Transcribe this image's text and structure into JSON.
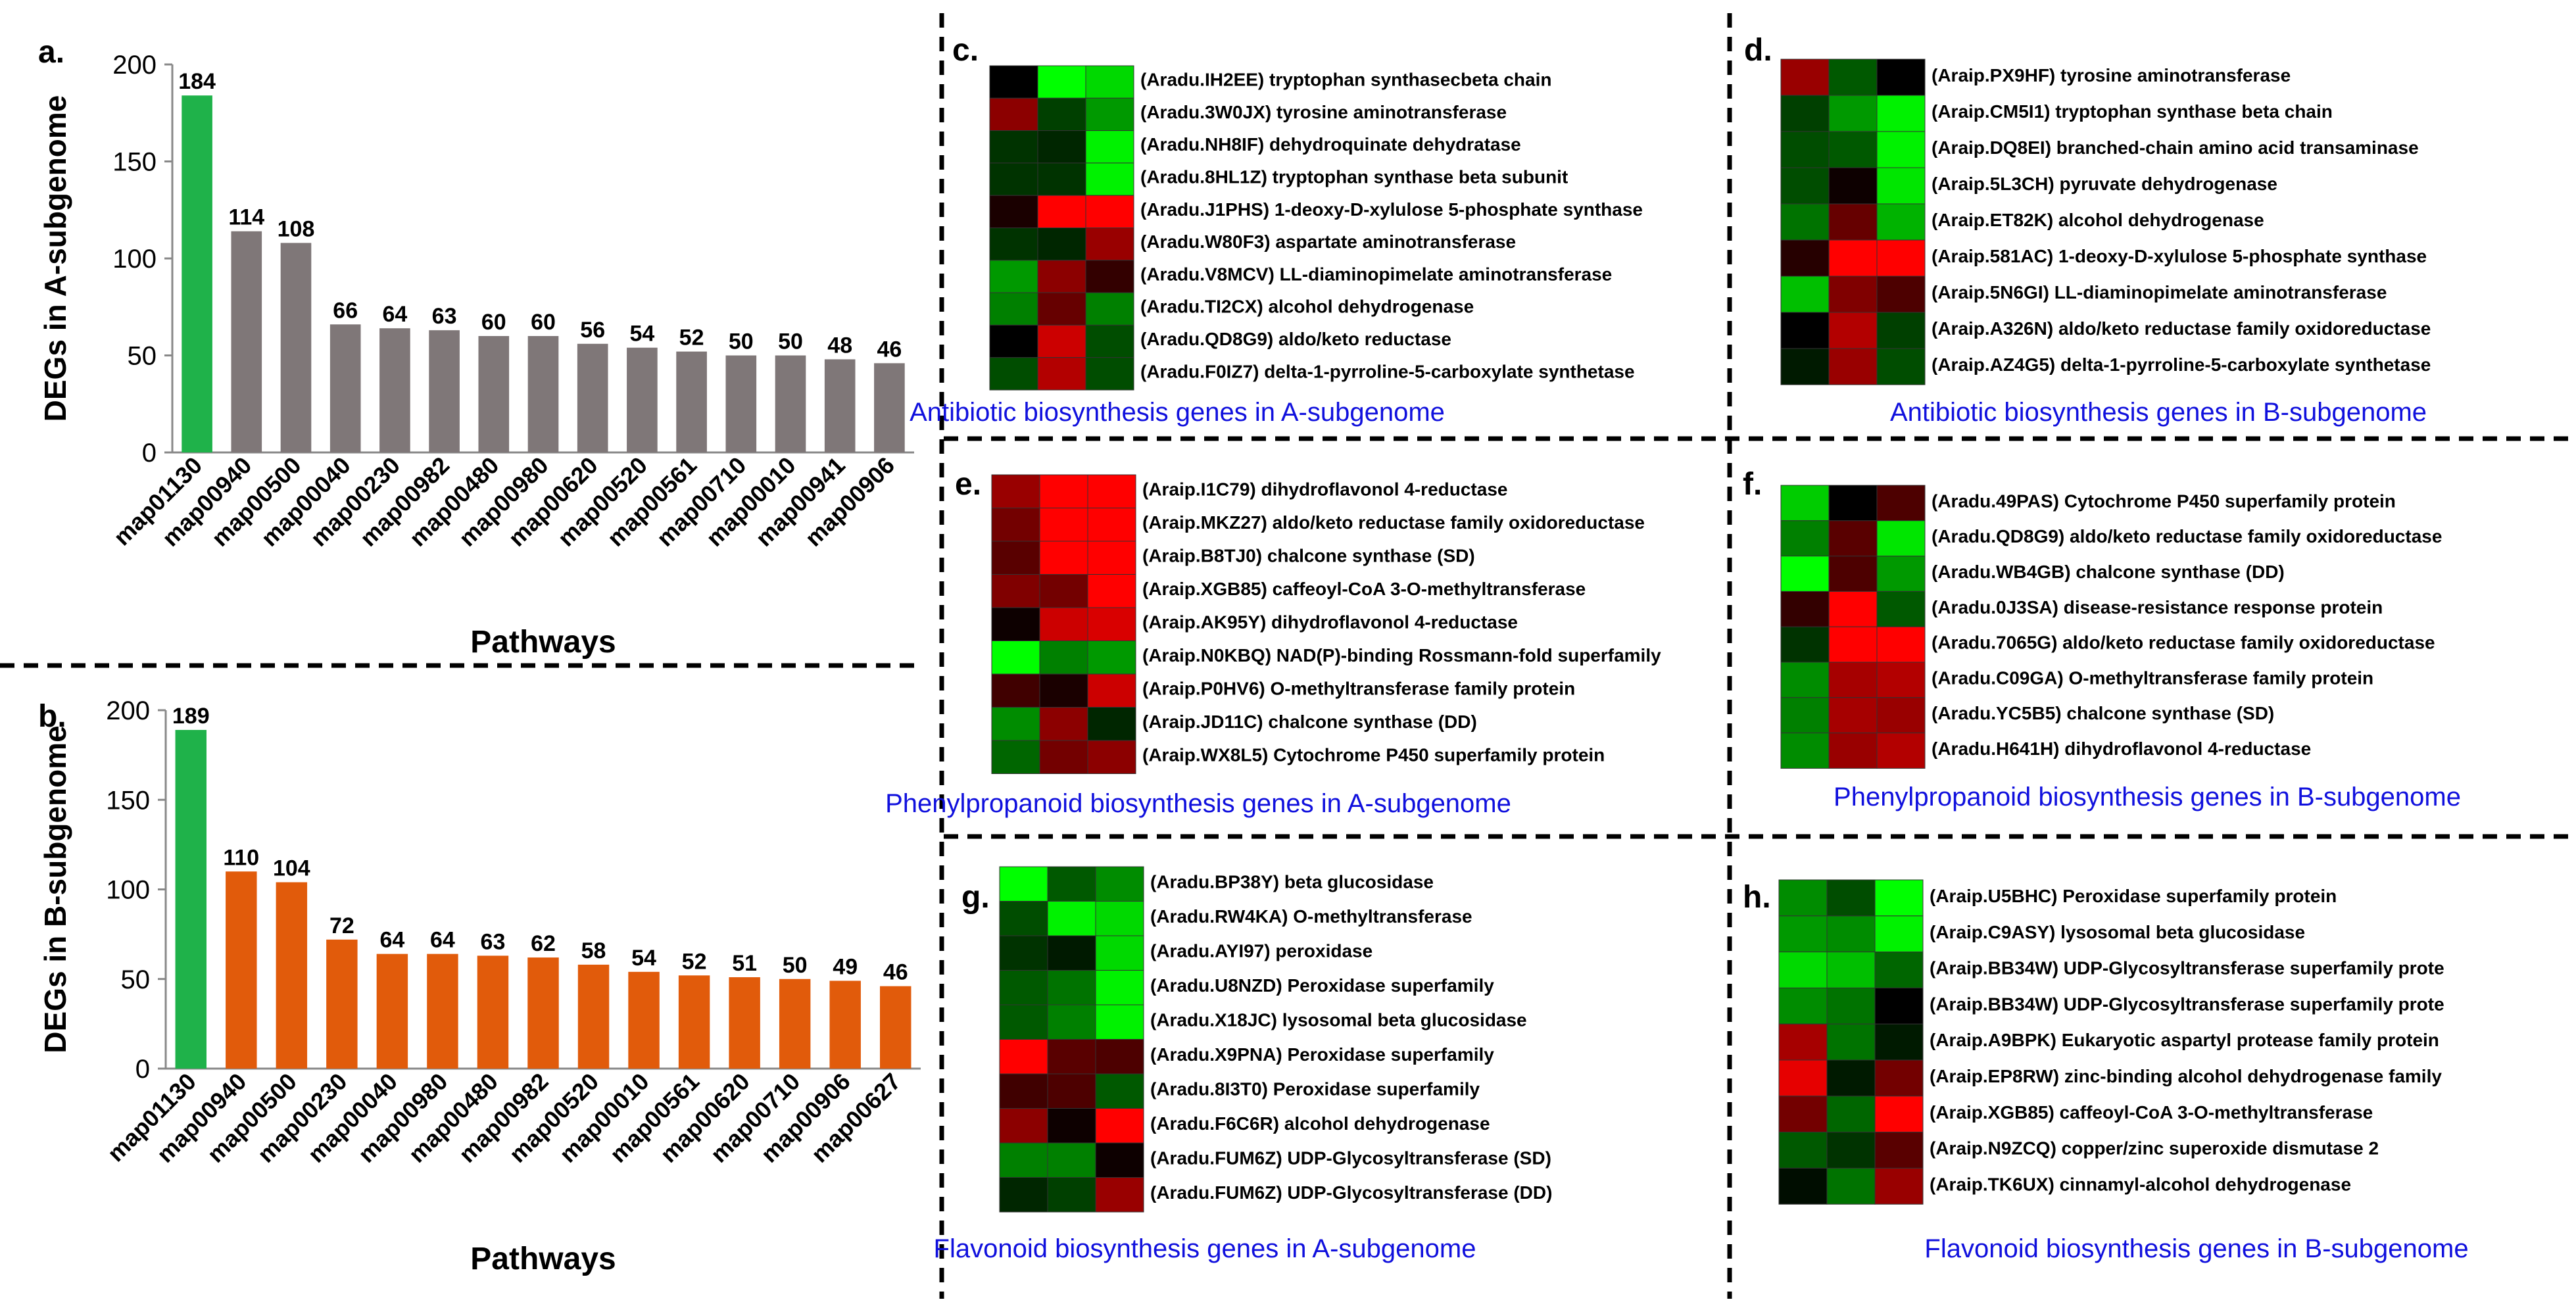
{
  "colors": {
    "green_bar": "#1fb24a",
    "gray_bar": "#7f7778",
    "orange_bar": "#e15b0b",
    "heat_up": "#ff0000",
    "heat_mid": "#000000",
    "heat_down": "#00ff00",
    "caption": "#1010dd"
  },
  "chart_data": [
    {
      "type": "bar",
      "panel_label": "a.",
      "ylabel": "DEGs in A-subgenome",
      "xlabel": "Pathways",
      "ylim": [
        0,
        200
      ],
      "yticks": [
        "0",
        "50",
        "100",
        "150",
        "200"
      ],
      "grid": false,
      "categories": [
        "map01130",
        "map00940",
        "map00500",
        "map00040",
        "map00230",
        "map00982",
        "map00480",
        "map00980",
        "map00620",
        "map00520",
        "map00561",
        "map00710",
        "map00010",
        "map00941",
        "map00906"
      ],
      "values": [
        184,
        114,
        108,
        66,
        64,
        63,
        60,
        60,
        56,
        54,
        52,
        50,
        50,
        48,
        46
      ],
      "bar_colors": [
        "green_bar",
        "gray_bar",
        "gray_bar",
        "gray_bar",
        "gray_bar",
        "gray_bar",
        "gray_bar",
        "gray_bar",
        "gray_bar",
        "gray_bar",
        "gray_bar",
        "gray_bar",
        "gray_bar",
        "gray_bar",
        "gray_bar"
      ]
    },
    {
      "type": "bar",
      "panel_label": "b.",
      "ylabel": "DEGs in B-subgenome",
      "xlabel": "Pathways",
      "ylim": [
        0,
        200
      ],
      "yticks": [
        "0",
        "50",
        "100",
        "150",
        "200"
      ],
      "grid": false,
      "categories": [
        "map01130",
        "map00940",
        "map00500",
        "map00230",
        "map00040",
        "map00980",
        "map00480",
        "map00982",
        "map00520",
        "map00010",
        "map00561",
        "map00620",
        "map00710",
        "map00906",
        "map00627"
      ],
      "values": [
        189,
        110,
        104,
        72,
        64,
        64,
        63,
        62,
        58,
        54,
        52,
        51,
        50,
        49,
        46
      ],
      "bar_colors": [
        "green_bar",
        "orange_bar",
        "orange_bar",
        "orange_bar",
        "orange_bar",
        "orange_bar",
        "orange_bar",
        "orange_bar",
        "orange_bar",
        "orange_bar",
        "orange_bar",
        "orange_bar",
        "orange_bar",
        "orange_bar",
        "orange_bar"
      ]
    },
    {
      "type": "heatmap",
      "panel_label": "c.",
      "title": "Antibiotic biosynthesis genes in A-subgenome",
      "rows": [
        "(Aradu.IH2EE) tryptophan synthasecbeta chain",
        "(Aradu.3W0JX) tyrosine aminotransferase",
        "(Aradu.NH8IF) dehydroquinate dehydratase",
        "(Aradu.8HL1Z) tryptophan synthase beta subunit",
        "(Aradu.J1PHS) 1-deoxy-D-xylulose 5-phosphate synthase",
        "(Aradu.W80F3) aspartate aminotransferase",
        "(Aradu.V8MCV) LL-diaminopimelate aminotransferase",
        "(Aradu.TI2CX) alcohol dehydrogenase",
        "(Aradu.QD8G9) aldo/keto reductase",
        "(Aradu.F0IZ7) delta-1-pyrroline-5-carboxylate synthetase"
      ],
      "values": [
        [
          0,
          -1,
          -0.85
        ],
        [
          0.55,
          -0.25,
          -0.6
        ],
        [
          -0.2,
          -0.15,
          -0.95
        ],
        [
          -0.2,
          -0.2,
          -0.95
        ],
        [
          0.1,
          1,
          1
        ],
        [
          -0.2,
          -0.15,
          0.6
        ],
        [
          -0.6,
          0.55,
          0.2
        ],
        [
          -0.5,
          0.4,
          -0.5
        ],
        [
          0,
          0.8,
          -0.3
        ],
        [
          -0.3,
          0.7,
          -0.3
        ]
      ]
    },
    {
      "type": "heatmap",
      "panel_label": "d.",
      "title": "Antibiotic biosynthesis genes in B-subgenome",
      "rows": [
        "(Araip.PX9HF) tyrosine aminotransferase",
        "(Araip.CM5I1) tryptophan synthase beta chain",
        "(Araip.DQ8EI) branched-chain amino acid transaminase",
        "(Araip.5L3CH) pyruvate dehydrogenase",
        "(Araip.ET82K) alcohol dehydrogenase",
        "(Araip.581AC) 1-deoxy-D-xylulose 5-phosphate synthase",
        "(Araip.5N6GI) LL-diaminopimelate aminotransferase",
        "(Araip.A326N) aldo/keto reductase family oxidoreductase",
        "(Araip.AZ4G5) delta-1-pyrroline-5-carboxylate synthetase"
      ],
      "values": [
        [
          0.6,
          -0.35,
          0
        ],
        [
          -0.25,
          -0.6,
          -0.95
        ],
        [
          -0.3,
          -0.35,
          -0.95
        ],
        [
          -0.3,
          0.05,
          -0.9
        ],
        [
          -0.45,
          0.4,
          -0.7
        ],
        [
          0.15,
          1,
          1
        ],
        [
          -0.75,
          0.5,
          0.3
        ],
        [
          0,
          0.7,
          -0.25
        ],
        [
          -0.1,
          0.6,
          -0.3
        ]
      ]
    },
    {
      "type": "heatmap",
      "panel_label": "e.",
      "title": "Phenylpropanoid biosynthesis genes in A-subgenome",
      "rows": [
        "(Araip.I1C79) dihydroflavonol 4-reductase",
        "(Araip.MKZ27) aldo/keto reductase family oxidoreductase",
        "(Araip.B8TJ0) chalcone synthase (SD)",
        "(Araip.XGB85) caffeoyl-CoA 3-O-methyltransferase",
        "(Araip.AK95Y) dihydroflavonol 4-reductase",
        "(Araip.N0KBQ) NAD(P)-binding Rossmann-fold superfamily",
        "(Araip.P0HV6) O-methyltransferase family protein",
        "(Araip.JD11C) chalcone synthase (DD)",
        "(Araip.WX8L5) Cytochrome P450 superfamily protein"
      ],
      "values": [
        [
          0.6,
          1,
          1
        ],
        [
          0.45,
          1,
          1
        ],
        [
          0.35,
          1,
          1
        ],
        [
          0.5,
          0.45,
          1
        ],
        [
          0.05,
          0.8,
          0.85
        ],
        [
          -1,
          -0.5,
          -0.6
        ],
        [
          0.25,
          0.1,
          0.8
        ],
        [
          -0.55,
          0.55,
          -0.15
        ],
        [
          -0.4,
          0.45,
          0.55
        ]
      ]
    },
    {
      "type": "heatmap",
      "panel_label": "f.",
      "title": "Phenylpropanoid biosynthesis genes in B-subgenome",
      "rows": [
        "(Aradu.49PAS) Cytochrome P450 superfamily protein",
        "(Aradu.QD8G9) aldo/keto reductase family oxidoreductase",
        "(Aradu.WB4GB) chalcone synthase (DD)",
        "(Aradu.0J3SA) disease-resistance response protein",
        "(Aradu.7065G) aldo/keto reductase family oxidoreductase",
        "(Aradu.C09GA) O-methyltransferase family protein",
        "(Aradu.YC5B5) chalcone synthase (SD)",
        "(Aradu.H641H) dihydroflavonol 4-reductase"
      ],
      "values": [
        [
          -0.8,
          0,
          0.3
        ],
        [
          -0.5,
          0.35,
          -0.9
        ],
        [
          -1,
          0.3,
          -0.6
        ],
        [
          0.2,
          1,
          -0.35
        ],
        [
          -0.2,
          1,
          1
        ],
        [
          -0.55,
          0.65,
          0.7
        ],
        [
          -0.5,
          0.65,
          0.6
        ],
        [
          -0.55,
          0.6,
          0.7
        ]
      ]
    },
    {
      "type": "heatmap",
      "panel_label": "g.",
      "title": "Flavonoid biosynthesis genes in A-subgenome",
      "rows": [
        "(Aradu.BP38Y) beta glucosidase",
        "(Aradu.RW4KA) O-methyltransferase",
        "(Aradu.AYI97) peroxidase",
        "(Aradu.U8NZD) Peroxidase superfamily",
        "(Aradu.X18JC) lysosomal beta glucosidase",
        "(Aradu.X9PNA) Peroxidase superfamily",
        "(Aradu.8I3T0) Peroxidase superfamily",
        "(Aradu.F6C6R) alcohol dehydrogenase",
        "(Aradu.FUM6Z) UDP-Glycosyltransferase (SD)",
        "(Aradu.FUM6Z) UDP-Glycosyltransferase (DD)"
      ],
      "values": [
        [
          -1,
          -0.35,
          -0.55
        ],
        [
          -0.3,
          -0.95,
          -0.85
        ],
        [
          -0.2,
          -0.1,
          -0.85
        ],
        [
          -0.35,
          -0.45,
          -0.95
        ],
        [
          -0.35,
          -0.5,
          -0.95
        ],
        [
          1,
          0.35,
          0.3
        ],
        [
          0.25,
          0.3,
          -0.35
        ],
        [
          0.55,
          0.05,
          1
        ],
        [
          -0.5,
          -0.5,
          0.05
        ],
        [
          -0.15,
          -0.25,
          0.6
        ]
      ]
    },
    {
      "type": "heatmap",
      "panel_label": "h.",
      "title": "Flavonoid biosynthesis genes in B-subgenome",
      "rows": [
        "(Araip.U5BHC) Peroxidase superfamily protein",
        "(Araip.C9ASY) lysosomal beta glucosidase",
        "(Araip.BB34W) UDP-Glycosyltransferase superfamily prote",
        "(Araip.BB34W) UDP-Glycosyltransferase superfamily prote",
        "(Araip.A9BPK) Eukaryotic aspartyl protease family protein",
        "(Araip.EP8RW) zinc-binding alcohol dehydrogenase family",
        "(Araip.XGB85) caffeoyl-CoA 3-O-methyltransferase",
        "(Araip.N9ZCQ) copper/zinc superoxide dismutase 2",
        "(Araip.TK6UX) cinnamyl-alcohol dehydrogenase"
      ],
      "values": [
        [
          -0.55,
          -0.3,
          -1
        ],
        [
          -0.6,
          -0.55,
          -0.95
        ],
        [
          -0.85,
          -0.75,
          -0.4
        ],
        [
          -0.55,
          -0.45,
          0
        ],
        [
          0.65,
          -0.45,
          -0.1
        ],
        [
          0.9,
          -0.1,
          0.45
        ],
        [
          0.45,
          -0.4,
          1
        ],
        [
          -0.35,
          -0.2,
          0.35
        ],
        [
          -0.05,
          -0.45,
          0.6
        ]
      ]
    }
  ]
}
